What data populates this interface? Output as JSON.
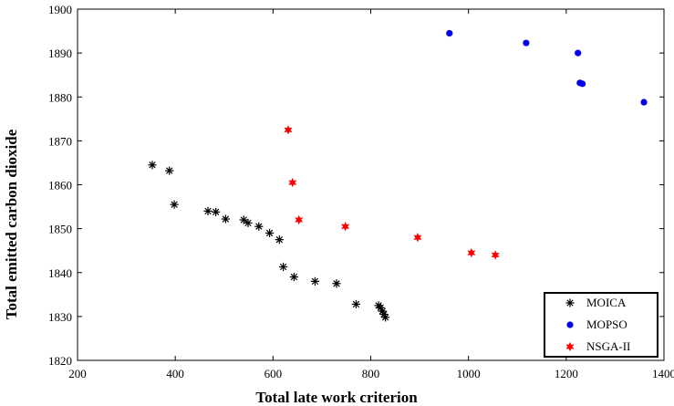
{
  "chart_data": {
    "type": "scatter",
    "xlabel": "Total late work criterion",
    "ylabel": "Total emitted carbon dioxide",
    "xlim": [
      200,
      1400
    ],
    "ylim": [
      1820,
      1900
    ],
    "xticks": [
      200,
      400,
      600,
      800,
      1000,
      1200,
      1400
    ],
    "yticks": [
      1820,
      1830,
      1840,
      1850,
      1860,
      1870,
      1880,
      1890,
      1900
    ],
    "grid": false,
    "legend_position": "bottom-right",
    "series": [
      {
        "name": "MOICA",
        "marker": "asterisk",
        "color": "#000000",
        "points": [
          [
            353,
            1864.5
          ],
          [
            388,
            1863.2
          ],
          [
            398,
            1855.5
          ],
          [
            467,
            1854
          ],
          [
            483,
            1853.8
          ],
          [
            503,
            1852.2
          ],
          [
            540,
            1852
          ],
          [
            549,
            1851.3
          ],
          [
            571,
            1850.5
          ],
          [
            593,
            1849
          ],
          [
            613,
            1847.5
          ],
          [
            621,
            1841.3
          ],
          [
            643,
            1839
          ],
          [
            686,
            1838
          ],
          [
            730,
            1837.5
          ],
          [
            770,
            1832.8
          ],
          [
            816,
            1832.5
          ],
          [
            820,
            1832
          ],
          [
            824,
            1831.2
          ],
          [
            827,
            1830.5
          ],
          [
            830,
            1829.8
          ]
        ]
      },
      {
        "name": "MOPSO",
        "marker": "circle",
        "color": "#0000ee",
        "points": [
          [
            961,
            1894.5
          ],
          [
            1118,
            1892.3
          ],
          [
            1224,
            1890
          ],
          [
            1228,
            1883.2
          ],
          [
            1233,
            1883
          ],
          [
            1359,
            1878.8
          ]
        ]
      },
      {
        "name": "NSGA-II",
        "marker": "star",
        "color": "#ff0000",
        "points": [
          [
            631,
            1872.5
          ],
          [
            640,
            1860.5
          ],
          [
            653,
            1852
          ],
          [
            748,
            1850.5
          ],
          [
            896,
            1848
          ],
          [
            1006,
            1844.5
          ],
          [
            1055,
            1844
          ]
        ]
      }
    ]
  }
}
